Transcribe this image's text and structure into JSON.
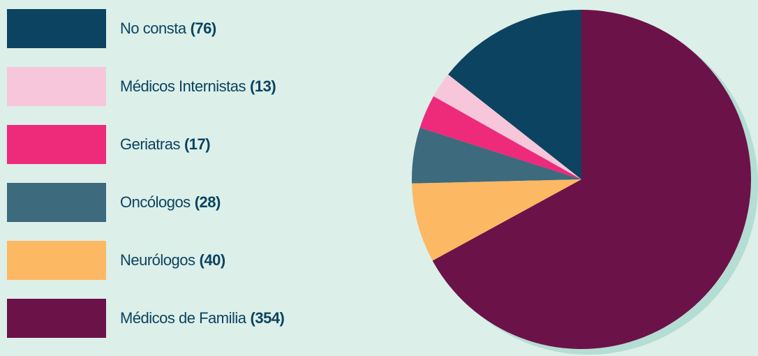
{
  "chart_data": {
    "type": "pie",
    "categories": [
      "No consta",
      "Médicos Internistas",
      "Geriatras",
      "Oncólogos",
      "Neurólogos",
      "Médicos de Familia"
    ],
    "values": [
      76,
      13,
      17,
      28,
      40,
      354
    ],
    "value_labels": [
      "(76)",
      "(13)",
      "(17)",
      "(28)",
      "(40)",
      "(354)"
    ],
    "colors": [
      "#0b4360",
      "#f7c6da",
      "#ee2a7b",
      "#3d6a7d",
      "#fdb863",
      "#6b1248"
    ],
    "legend": "left"
  }
}
